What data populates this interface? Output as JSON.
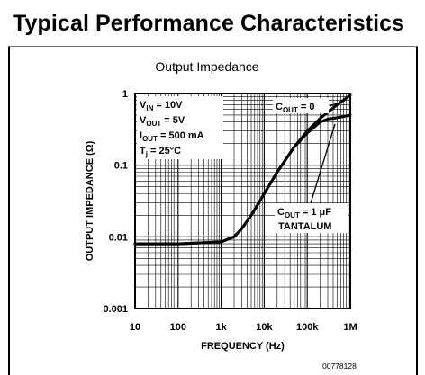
{
  "section_title": "Typical Performance Characteristics",
  "doc_id": "00778128",
  "colors": {
    "ink": "#000000",
    "background": "#ffffff"
  },
  "chart_data": {
    "type": "line",
    "title": "Output Impedance",
    "xlabel": "FREQUENCY (Hz)",
    "ylabel": "OUTPUT IMPEDANCE (Ω)",
    "x_scale": "log",
    "y_scale": "log",
    "xlim": [
      10,
      1000000
    ],
    "ylim": [
      0.001,
      1
    ],
    "x_ticks": [
      "10",
      "100",
      "1k",
      "10k",
      "100k",
      "1M"
    ],
    "y_ticks": [
      "1",
      "0.1",
      "0.01",
      "0.001"
    ],
    "grid": true,
    "conditions": [
      {
        "main": "V",
        "sub": "IN",
        "rest": " = 10V"
      },
      {
        "main": "V",
        "sub": "OUT",
        "rest": " = 5V"
      },
      {
        "main": "I",
        "sub": "OUT",
        "rest": " = 500 mA"
      },
      {
        "main": "T",
        "sub": "j",
        "rest": " = 25°C"
      }
    ],
    "series": [
      {
        "label_main": "C",
        "label_sub": "OUT",
        "label_rest": " = 0",
        "x": [
          10,
          100,
          1000,
          2000,
          3000,
          5000,
          10000,
          20000,
          50000,
          100000,
          200000,
          500000,
          1000000
        ],
        "y": [
          0.008,
          0.008,
          0.0085,
          0.01,
          0.013,
          0.02,
          0.04,
          0.08,
          0.18,
          0.3,
          0.45,
          0.7,
          0.95
        ]
      },
      {
        "label_main": "C",
        "label_sub": "OUT",
        "label_rest": " = 1 μF",
        "label_line2": "TANTALUM",
        "x": [
          10,
          100,
          1000,
          2000,
          3000,
          5000,
          10000,
          20000,
          50000,
          100000,
          200000,
          300000,
          500000,
          1000000
        ],
        "y": [
          0.008,
          0.008,
          0.0085,
          0.01,
          0.013,
          0.02,
          0.04,
          0.08,
          0.18,
          0.28,
          0.4,
          0.44,
          0.46,
          0.5
        ]
      }
    ]
  }
}
